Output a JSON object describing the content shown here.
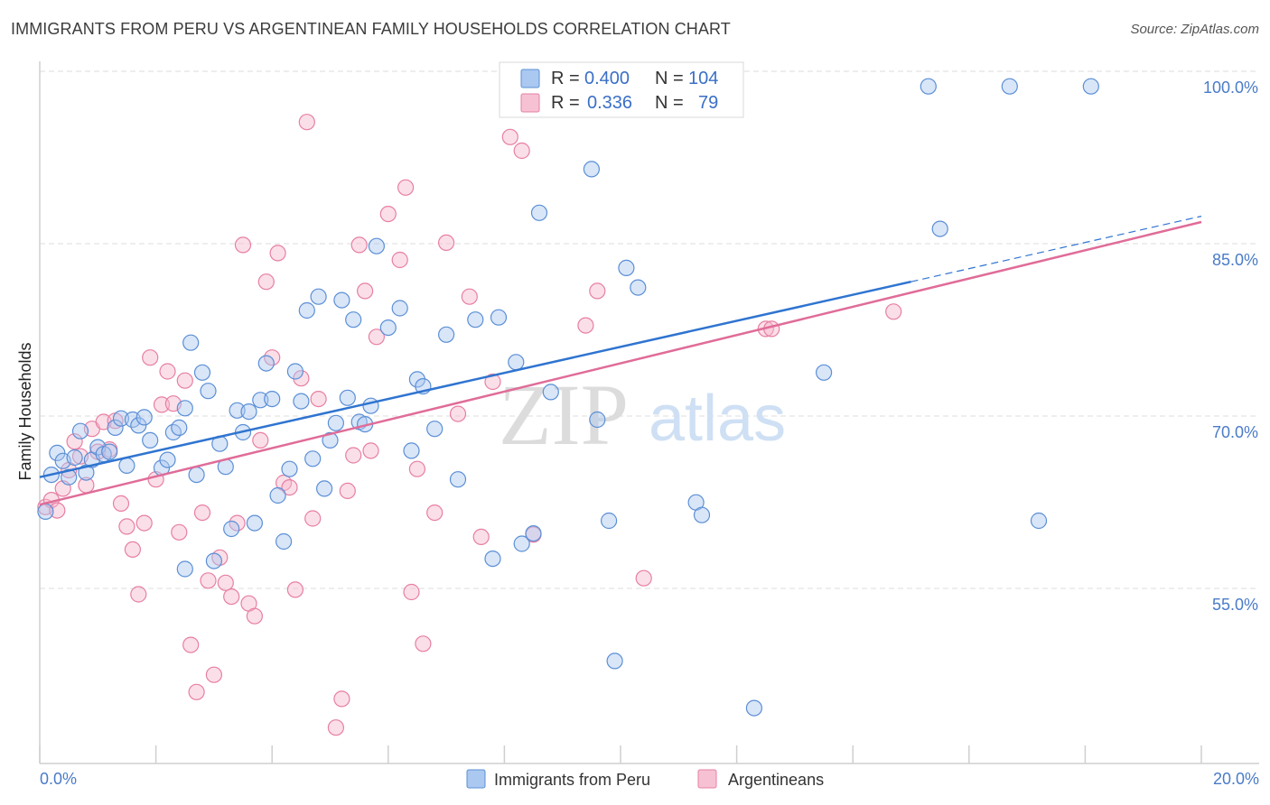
{
  "header": {
    "title": "IMMIGRANTS FROM PERU VS ARGENTINEAN FAMILY HOUSEHOLDS CORRELATION CHART",
    "source": "Source: ZipAtlas.com"
  },
  "watermark": {
    "zip": "ZIP",
    "atlas": "atlas"
  },
  "colors": {
    "blue": "#5b8fd6",
    "blue_fill": "#aac8f0",
    "blue_line": "#2f74d0",
    "pink": "#e77fa3",
    "pink_fill": "#f6b9cd",
    "pink_line": "#e06c98",
    "grid": "#dddddd",
    "axis_text": "#4a7bc8"
  },
  "legend": {
    "rows": [
      {
        "r_label": "R = ",
        "r_value": "0.400",
        "n_label": "N = ",
        "n_value": "104"
      },
      {
        "r_label": "R = ",
        "r_value": "0.336",
        "n_label": "N = ",
        "n_value": "79"
      }
    ]
  },
  "bottom_legend": {
    "items": [
      {
        "label": "Immigrants from Peru"
      },
      {
        "label": "Argentineans"
      }
    ]
  },
  "chart_data": {
    "type": "scatter",
    "title": "IMMIGRANTS FROM PERU VS ARGENTINEAN FAMILY HOUSEHOLDS CORRELATION CHART",
    "xlabel": "",
    "ylabel": "Family Households",
    "xlim": [
      0,
      20
    ],
    "ylim": [
      40,
      101
    ],
    "x_tick_labels": [
      "0.0%",
      "20.0%"
    ],
    "y_ticks": [
      55,
      70,
      85,
      100
    ],
    "y_tick_labels": [
      "55.0%",
      "70.0%",
      "85.0%",
      "100.0%"
    ],
    "grid": true,
    "series": [
      {
        "name": "Immigrants from Peru",
        "color": "#5b8fd6",
        "R": 0.4,
        "N": 104,
        "trend": {
          "x0": 0,
          "y0": 66.1,
          "x1": 15,
          "y1": 83.1,
          "dashed_to_x": 20,
          "dashed_to_y": 88.8
        },
        "points": [
          [
            0.1,
            63.1
          ],
          [
            0.2,
            66.3
          ],
          [
            0.3,
            68.2
          ],
          [
            0.4,
            67.5
          ],
          [
            0.5,
            66.1
          ],
          [
            0.6,
            67.8
          ],
          [
            0.7,
            70.1
          ],
          [
            0.8,
            66.5
          ],
          [
            0.9,
            67.6
          ],
          [
            1.0,
            68.7
          ],
          [
            1.1,
            68.1
          ],
          [
            1.2,
            68.3
          ],
          [
            1.3,
            70.4
          ],
          [
            1.4,
            71.2
          ],
          [
            1.5,
            67.1
          ],
          [
            1.6,
            71.1
          ],
          [
            1.7,
            70.6
          ],
          [
            1.8,
            71.3
          ],
          [
            1.9,
            69.3
          ],
          [
            2.1,
            66.9
          ],
          [
            2.2,
            67.6
          ],
          [
            2.3,
            70.0
          ],
          [
            2.4,
            70.4
          ],
          [
            2.5,
            72.1
          ],
          [
            2.5,
            58.1
          ],
          [
            2.6,
            77.8
          ],
          [
            2.7,
            66.3
          ],
          [
            2.8,
            75.2
          ],
          [
            2.9,
            73.6
          ],
          [
            3.0,
            58.8
          ],
          [
            3.1,
            69.0
          ],
          [
            3.2,
            67.0
          ],
          [
            3.3,
            61.6
          ],
          [
            3.4,
            71.9
          ],
          [
            3.5,
            70.0
          ],
          [
            3.6,
            71.8
          ],
          [
            3.7,
            62.1
          ],
          [
            3.8,
            72.8
          ],
          [
            3.9,
            76.0
          ],
          [
            4.0,
            72.9
          ],
          [
            4.1,
            64.5
          ],
          [
            4.2,
            60.5
          ],
          [
            4.3,
            66.8
          ],
          [
            4.4,
            75.3
          ],
          [
            4.5,
            72.7
          ],
          [
            4.6,
            80.6
          ],
          [
            4.7,
            67.7
          ],
          [
            4.8,
            81.8
          ],
          [
            4.9,
            65.1
          ],
          [
            5.0,
            69.3
          ],
          [
            5.1,
            70.8
          ],
          [
            5.2,
            81.5
          ],
          [
            5.3,
            73.0
          ],
          [
            5.4,
            79.8
          ],
          [
            5.5,
            70.9
          ],
          [
            5.6,
            70.7
          ],
          [
            5.7,
            72.3
          ],
          [
            5.8,
            86.2
          ],
          [
            6.0,
            79.1
          ],
          [
            6.2,
            80.8
          ],
          [
            6.4,
            68.4
          ],
          [
            6.5,
            74.6
          ],
          [
            6.6,
            74.0
          ],
          [
            6.8,
            70.3
          ],
          [
            7.0,
            78.5
          ],
          [
            7.2,
            65.9
          ],
          [
            7.5,
            79.8
          ],
          [
            7.8,
            59.0
          ],
          [
            7.9,
            80.0
          ],
          [
            8.2,
            76.1
          ],
          [
            8.3,
            60.3
          ],
          [
            8.5,
            61.2
          ],
          [
            8.6,
            89.1
          ],
          [
            8.8,
            73.5
          ],
          [
            9.5,
            92.9
          ],
          [
            9.6,
            71.1
          ],
          [
            9.8,
            62.3
          ],
          [
            9.9,
            50.1
          ],
          [
            10.1,
            84.3
          ],
          [
            10.3,
            82.6
          ],
          [
            11.3,
            63.9
          ],
          [
            11.4,
            62.8
          ],
          [
            12.3,
            46.0
          ],
          [
            13.5,
            75.2
          ],
          [
            15.3,
            100.1
          ],
          [
            15.5,
            87.7
          ],
          [
            16.7,
            100.1
          ],
          [
            17.2,
            62.3
          ],
          [
            18.1,
            100.1
          ]
        ]
      },
      {
        "name": "Argentineans",
        "color": "#e77fa3",
        "R": 0.336,
        "N": 79,
        "trend": {
          "x0": 0,
          "y0": 63.7,
          "x1": 20,
          "y1": 88.3
        },
        "points": [
          [
            0.1,
            63.5
          ],
          [
            0.2,
            64.1
          ],
          [
            0.3,
            63.2
          ],
          [
            0.4,
            65.1
          ],
          [
            0.5,
            66.7
          ],
          [
            0.6,
            69.2
          ],
          [
            0.7,
            67.9
          ],
          [
            0.8,
            65.4
          ],
          [
            0.9,
            70.3
          ],
          [
            1.0,
            68.3
          ],
          [
            1.1,
            70.9
          ],
          [
            1.2,
            68.5
          ],
          [
            1.3,
            71.0
          ],
          [
            1.4,
            63.8
          ],
          [
            1.5,
            61.8
          ],
          [
            1.6,
            59.8
          ],
          [
            1.7,
            55.9
          ],
          [
            1.8,
            62.1
          ],
          [
            1.9,
            76.5
          ],
          [
            2.0,
            65.9
          ],
          [
            2.1,
            72.4
          ],
          [
            2.2,
            75.3
          ],
          [
            2.3,
            72.5
          ],
          [
            2.4,
            61.3
          ],
          [
            2.5,
            74.5
          ],
          [
            2.6,
            51.5
          ],
          [
            2.7,
            47.4
          ],
          [
            2.8,
            63.0
          ],
          [
            2.9,
            57.1
          ],
          [
            3.0,
            48.9
          ],
          [
            3.1,
            59.1
          ],
          [
            3.2,
            56.9
          ],
          [
            3.3,
            55.7
          ],
          [
            3.4,
            62.1
          ],
          [
            3.5,
            86.3
          ],
          [
            3.6,
            55.1
          ],
          [
            3.7,
            54.0
          ],
          [
            3.8,
            69.3
          ],
          [
            3.9,
            83.1
          ],
          [
            4.0,
            76.5
          ],
          [
            4.1,
            85.6
          ],
          [
            4.2,
            65.6
          ],
          [
            4.3,
            65.2
          ],
          [
            4.4,
            56.3
          ],
          [
            4.5,
            74.7
          ],
          [
            4.6,
            97.0
          ],
          [
            4.7,
            62.5
          ],
          [
            4.8,
            72.9
          ],
          [
            5.1,
            44.3
          ],
          [
            5.2,
            46.8
          ],
          [
            5.3,
            64.9
          ],
          [
            5.4,
            68.0
          ],
          [
            5.5,
            86.3
          ],
          [
            5.6,
            82.3
          ],
          [
            5.7,
            68.4
          ],
          [
            5.8,
            78.3
          ],
          [
            6.0,
            89.0
          ],
          [
            6.2,
            85.0
          ],
          [
            6.3,
            91.3
          ],
          [
            6.4,
            56.1
          ],
          [
            6.5,
            66.8
          ],
          [
            6.6,
            51.6
          ],
          [
            6.8,
            63.0
          ],
          [
            7.0,
            86.5
          ],
          [
            7.2,
            71.6
          ],
          [
            7.4,
            81.8
          ],
          [
            7.6,
            60.9
          ],
          [
            7.8,
            74.4
          ],
          [
            8.1,
            95.7
          ],
          [
            8.3,
            94.5
          ],
          [
            8.5,
            61.1
          ],
          [
            9.4,
            79.3
          ],
          [
            9.6,
            82.3
          ],
          [
            10.4,
            57.3
          ],
          [
            12.5,
            79.0
          ],
          [
            12.6,
            79.0
          ],
          [
            14.7,
            80.5
          ]
        ]
      }
    ]
  }
}
